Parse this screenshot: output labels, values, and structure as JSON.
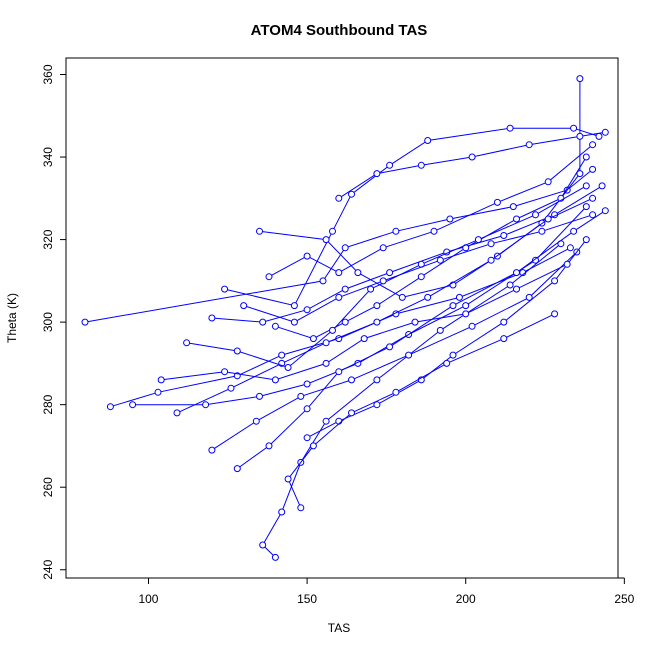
{
  "chart_data": {
    "type": "scatter",
    "title": "ATOM4 Southbound TAS",
    "xlabel": "TAS",
    "ylabel": "Theta (K)",
    "xlim": [
      74,
      248
    ],
    "ylim": [
      238,
      364
    ],
    "xticks": [
      100,
      150,
      200,
      250
    ],
    "yticks": [
      240,
      260,
      280,
      300,
      320,
      340,
      360
    ],
    "grid": false,
    "legend": "none",
    "point_style": "open-circle",
    "connected": true,
    "series_color": "#0000ff",
    "series": [
      {
        "points": [
          [
            80,
            300
          ],
          [
            155,
            310
          ],
          [
            162,
            318
          ],
          [
            178,
            322
          ],
          [
            195,
            325
          ],
          [
            215,
            328
          ],
          [
            232,
            332
          ],
          [
            240,
            337
          ]
        ]
      },
      {
        "points": [
          [
            88,
            279.5
          ],
          [
            103,
            283
          ],
          [
            128,
            287
          ],
          [
            142,
            292
          ],
          [
            160,
            296
          ],
          [
            178,
            302
          ],
          [
            198,
            306
          ],
          [
            218,
            312
          ],
          [
            233,
            318
          ]
        ]
      },
      {
        "points": [
          [
            95,
            280
          ],
          [
            118,
            280
          ],
          [
            135,
            282
          ],
          [
            150,
            285
          ],
          [
            166,
            290
          ],
          [
            182,
            297
          ],
          [
            200,
            304
          ],
          [
            222,
            315
          ],
          [
            238,
            328
          ]
        ]
      },
      {
        "points": [
          [
            120,
            301
          ],
          [
            136,
            300
          ],
          [
            150,
            303
          ],
          [
            162,
            308
          ],
          [
            176,
            312
          ],
          [
            194,
            317
          ],
          [
            212,
            321
          ],
          [
            228,
            326
          ],
          [
            243,
            333
          ]
        ]
      },
      {
        "points": [
          [
            140,
            243
          ],
          [
            136,
            246
          ],
          [
            142,
            254
          ],
          [
            148,
            266
          ],
          [
            156,
            276
          ],
          [
            172,
            286
          ],
          [
            192,
            298
          ],
          [
            214,
            309
          ],
          [
            230,
            319
          ]
        ]
      },
      {
        "points": [
          [
            128,
            264.5
          ],
          [
            138,
            270
          ],
          [
            150,
            279
          ],
          [
            160,
            288
          ],
          [
            176,
            294
          ],
          [
            196,
            304
          ],
          [
            216,
            312
          ],
          [
            234,
            322
          ],
          [
            244,
            327
          ]
        ]
      },
      {
        "points": [
          [
            124,
            308
          ],
          [
            146,
            304
          ],
          [
            158,
            322
          ],
          [
            164,
            331
          ],
          [
            176,
            338
          ],
          [
            188,
            344
          ],
          [
            214,
            347
          ],
          [
            234,
            347
          ],
          [
            242,
            345
          ]
        ]
      },
      {
        "points": [
          [
            135,
            322
          ],
          [
            156,
            320
          ],
          [
            166,
            312
          ],
          [
            180,
            306
          ],
          [
            196,
            309
          ],
          [
            210,
            316
          ],
          [
            224,
            324
          ],
          [
            236,
            336
          ],
          [
            236,
            359
          ]
        ]
      },
      {
        "points": [
          [
            109,
            278
          ],
          [
            126,
            284
          ],
          [
            142,
            290
          ],
          [
            156,
            295
          ],
          [
            172,
            300
          ],
          [
            188,
            306
          ],
          [
            208,
            315
          ],
          [
            226,
            325
          ],
          [
            240,
            330
          ]
        ]
      },
      {
        "points": [
          [
            120,
            269
          ],
          [
            134,
            276
          ],
          [
            148,
            282
          ],
          [
            164,
            286
          ],
          [
            182,
            292
          ],
          [
            202,
            299
          ],
          [
            220,
            306
          ],
          [
            235,
            317
          ]
        ]
      },
      {
        "points": [
          [
            140,
            299
          ],
          [
            152,
            296
          ],
          [
            162,
            300
          ],
          [
            172,
            304
          ],
          [
            186,
            311
          ],
          [
            200,
            318
          ],
          [
            216,
            325
          ],
          [
            230,
            330
          ],
          [
            238,
            340
          ]
        ]
      },
      {
        "points": [
          [
            112,
            295
          ],
          [
            128,
            293
          ],
          [
            144,
            289
          ],
          [
            158,
            298
          ],
          [
            170,
            308
          ],
          [
            186,
            314
          ],
          [
            204,
            320
          ],
          [
            222,
            326
          ],
          [
            238,
            333
          ]
        ]
      },
      {
        "points": [
          [
            150,
            272
          ],
          [
            160,
            276
          ],
          [
            172,
            280
          ],
          [
            186,
            286
          ],
          [
            196,
            292
          ],
          [
            212,
            300
          ],
          [
            228,
            310
          ],
          [
            238,
            320
          ]
        ]
      },
      {
        "points": [
          [
            138,
            311
          ],
          [
            150,
            316
          ],
          [
            160,
            312
          ],
          [
            174,
            318
          ],
          [
            190,
            322
          ],
          [
            210,
            329
          ],
          [
            226,
            334
          ],
          [
            240,
            343
          ]
        ]
      },
      {
        "points": [
          [
            104,
            286
          ],
          [
            124,
            288
          ],
          [
            140,
            286
          ],
          [
            156,
            290
          ],
          [
            168,
            296
          ],
          [
            184,
            300
          ],
          [
            200,
            302
          ],
          [
            216,
            308
          ],
          [
            232,
            314
          ]
        ]
      },
      {
        "points": [
          [
            130,
            304
          ],
          [
            146,
            300
          ],
          [
            160,
            306
          ],
          [
            174,
            310
          ],
          [
            192,
            315
          ],
          [
            208,
            319
          ],
          [
            224,
            322
          ],
          [
            240,
            326
          ]
        ]
      },
      {
        "points": [
          [
            148,
            255
          ],
          [
            144,
            262
          ],
          [
            152,
            270
          ],
          [
            164,
            278
          ],
          [
            178,
            283
          ],
          [
            194,
            290
          ],
          [
            212,
            296
          ],
          [
            228,
            302
          ]
        ]
      },
      {
        "points": [
          [
            160,
            330
          ],
          [
            172,
            336
          ],
          [
            186,
            338
          ],
          [
            202,
            340
          ],
          [
            220,
            343
          ],
          [
            236,
            345
          ],
          [
            244,
            346
          ]
        ]
      }
    ]
  }
}
